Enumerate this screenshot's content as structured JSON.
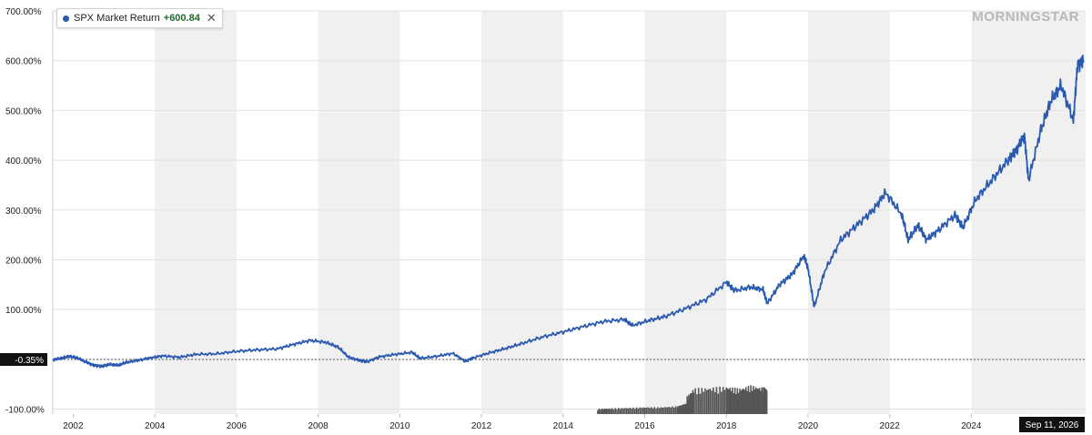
{
  "brand": {
    "logo_text": "MORNINGSTAR",
    "logo_color": "#b8b8b8"
  },
  "legend": {
    "series_name": "SPX Market Return",
    "value": "+600.84",
    "close_glyph": "✕",
    "close_icon": "close-icon"
  },
  "colors": {
    "line": "#2b59b0",
    "band": "#f0f0f0",
    "grid": "#e2e2e2",
    "axis_text": "#222222",
    "tag_bg": "#111111",
    "volume": "#555555",
    "value_positive": "#1d6a2c"
  },
  "chart_data": {
    "type": "line",
    "title": "",
    "xlabel": "",
    "ylabel": "",
    "x_range": [
      2001.5,
      2026.8
    ],
    "ylim": [
      -110,
      700
    ],
    "y_ticks": [
      {
        "v": 700,
        "label": "700.00%"
      },
      {
        "v": 600,
        "label": "600.00%"
      },
      {
        "v": 500,
        "label": "500.00%"
      },
      {
        "v": 400,
        "label": "400.00%"
      },
      {
        "v": 300,
        "label": "300.00%"
      },
      {
        "v": 200,
        "label": "200.00%"
      },
      {
        "v": 100,
        "label": "100.00%"
      },
      {
        "v": 0,
        "label": "0.00%"
      },
      {
        "v": -100,
        "label": "-100.00%"
      }
    ],
    "x_ticks": [
      "2002",
      "2004",
      "2006",
      "2008",
      "2010",
      "2012",
      "2014",
      "2016",
      "2018",
      "2020",
      "2022",
      "2024"
    ],
    "reference_line": {
      "value": -0.35,
      "label": "-0.35%"
    },
    "date_tag": "Sep 11, 2026",
    "series": [
      {
        "name": "SPX Market Return",
        "x": [
          2001.5,
          2001.7,
          2001.9,
          2002.1,
          2002.3,
          2002.5,
          2002.7,
          2002.9,
          2003.1,
          2003.3,
          2003.6,
          2003.9,
          2004.2,
          2004.6,
          2005.0,
          2005.5,
          2006.0,
          2006.5,
          2007.0,
          2007.4,
          2007.8,
          2008.2,
          2008.5,
          2008.75,
          2009.0,
          2009.2,
          2009.5,
          2009.9,
          2010.3,
          2010.5,
          2010.9,
          2011.3,
          2011.6,
          2011.8,
          2012.2,
          2012.6,
          2013.0,
          2013.5,
          2014.0,
          2014.5,
          2015.0,
          2015.5,
          2015.7,
          2016.1,
          2016.5,
          2017.0,
          2017.5,
          2018.0,
          2018.2,
          2018.6,
          2018.9,
          2019.0,
          2019.3,
          2019.6,
          2019.9,
          2020.0,
          2020.15,
          2020.4,
          2020.8,
          2021.2,
          2021.6,
          2021.9,
          2022.3,
          2022.45,
          2022.7,
          2022.9,
          2023.2,
          2023.6,
          2023.8,
          2024.1,
          2024.5,
          2024.9,
          2025.1,
          2025.3,
          2025.4,
          2025.7,
          2025.95,
          2026.2,
          2026.5,
          2026.6,
          2026.75
        ],
        "values": [
          -1,
          2,
          6,
          3,
          -5,
          -12,
          -14,
          -10,
          -12,
          -6,
          -2,
          3,
          7,
          4,
          10,
          11,
          16,
          19,
          21,
          30,
          38,
          34,
          24,
          4,
          -2,
          -5,
          5,
          10,
          14,
          2,
          6,
          12,
          -4,
          3,
          13,
          22,
          32,
          45,
          55,
          66,
          76,
          80,
          68,
          78,
          86,
          102,
          120,
          155,
          138,
          145,
          140,
          112,
          150,
          170,
          208,
          183,
          105,
          175,
          240,
          270,
          300,
          335,
          290,
          240,
          270,
          240,
          260,
          290,
          265,
          320,
          360,
          400,
          420,
          450,
          360,
          460,
          520,
          550,
          480,
          590,
          600
        ]
      },
      {
        "name": "volume",
        "x": [
          2014.85,
          2015.2,
          2015.6,
          2016.0,
          2016.4,
          2016.8,
          2017.0,
          2017.2,
          2017.6,
          2018.0,
          2018.3,
          2018.6,
          2018.9,
          2019.0
        ],
        "values": [
          -102,
          -101,
          -100,
          -99,
          -99,
          -97,
          -92,
          -72,
          -70,
          -68,
          -72,
          -66,
          -70,
          -72
        ]
      }
    ]
  }
}
